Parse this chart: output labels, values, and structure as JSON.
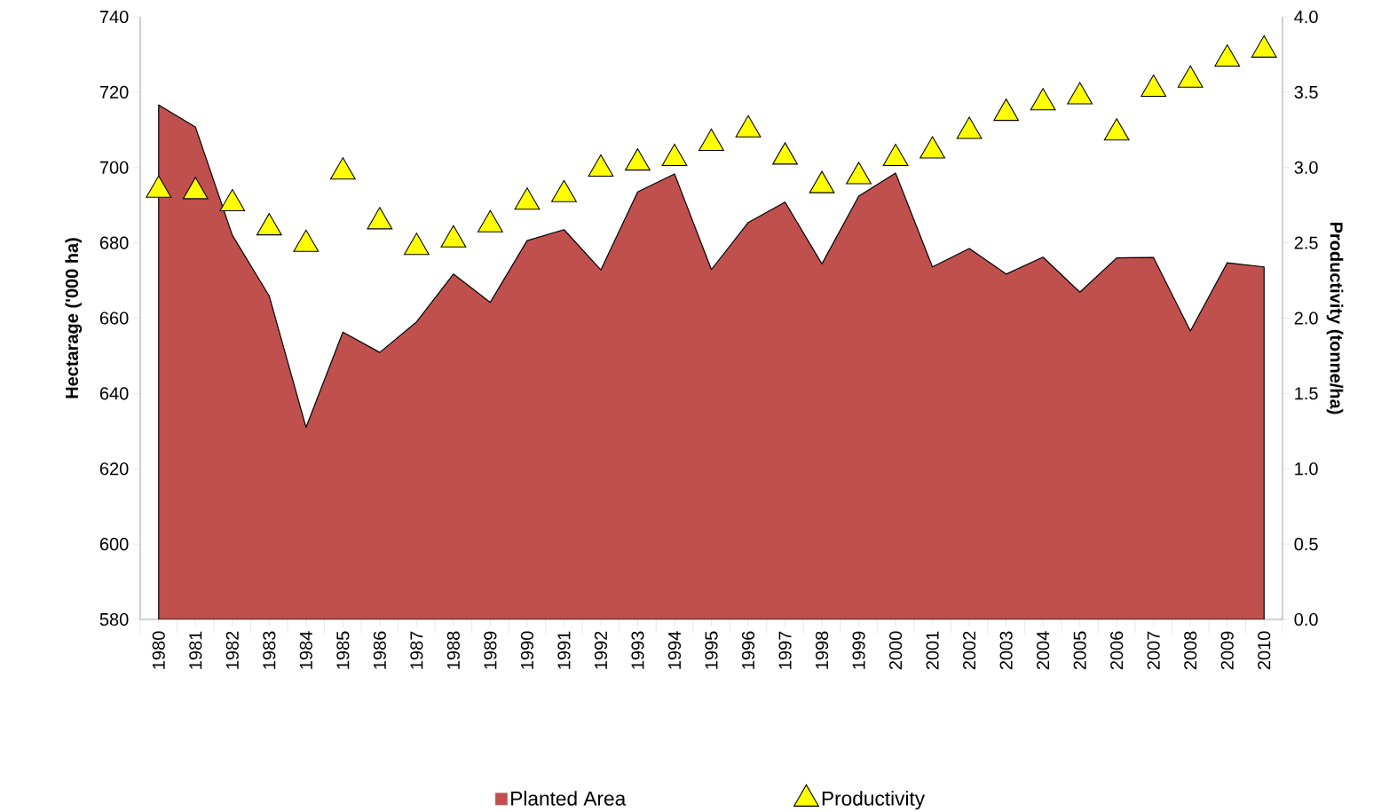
{
  "chart_data": {
    "type": "area",
    "ylabel": "Hectarage ('000 ha)",
    "y2label": "Productivity (tonne/ha)",
    "categories": [
      "1980",
      "1981",
      "1982",
      "1983",
      "1984",
      "1985",
      "1986",
      "1987",
      "1988",
      "1989",
      "1990",
      "1991",
      "1992",
      "1993",
      "1994",
      "1995",
      "1996",
      "1997",
      "1998",
      "1999",
      "2000",
      "2001",
      "2002",
      "2003",
      "2004",
      "2005",
      "2006",
      "2007",
      "2008",
      "2009",
      "2010"
    ],
    "series": [
      {
        "name": "Planted Area",
        "color": "#c0504d",
        "values": [
          716.6,
          710.7,
          682.0,
          665.9,
          631.0,
          656.3,
          650.9,
          659.0,
          671.7,
          664.2,
          680.6,
          683.5,
          672.8,
          693.5,
          698.3,
          672.9,
          685.4,
          690.8,
          674.4,
          692.4,
          698.5,
          673.6,
          678.5,
          671.7,
          676.2,
          666.9,
          676.0,
          676.1,
          656.6,
          674.7,
          673.6
        ]
      },
      {
        "name": "Productivity",
        "type": "scatter",
        "axis": "y2",
        "marker": "triangle",
        "color": "#ffff00",
        "values": [
          2.85,
          2.84,
          2.76,
          2.6,
          2.49,
          2.97,
          2.64,
          2.47,
          2.52,
          2.62,
          2.77,
          2.82,
          2.99,
          3.03,
          3.06,
          3.16,
          3.25,
          3.07,
          2.88,
          2.94,
          3.06,
          3.11,
          3.24,
          3.36,
          3.43,
          3.47,
          3.23,
          3.52,
          3.58,
          3.72,
          3.78
        ]
      }
    ],
    "ylim": [
      580,
      740
    ],
    "yticks": [
      580,
      600,
      620,
      640,
      660,
      680,
      700,
      720,
      740
    ],
    "y2lim": [
      0,
      4
    ],
    "y2ticks": [
      {
        "value": 0,
        "label": "0.0"
      },
      {
        "value": 0.5,
        "label": "0.5"
      },
      {
        "value": 1,
        "label": "1.0"
      },
      {
        "value": 1.5,
        "label": "1.5"
      },
      {
        "value": 2,
        "label": "2.0"
      },
      {
        "value": 2.5,
        "label": "2.5"
      },
      {
        "value": 3,
        "label": "3.0"
      },
      {
        "value": 3.5,
        "label": "3.5"
      },
      {
        "value": 4,
        "label": "4.0"
      }
    ],
    "grid": false,
    "legend": "bottom"
  }
}
